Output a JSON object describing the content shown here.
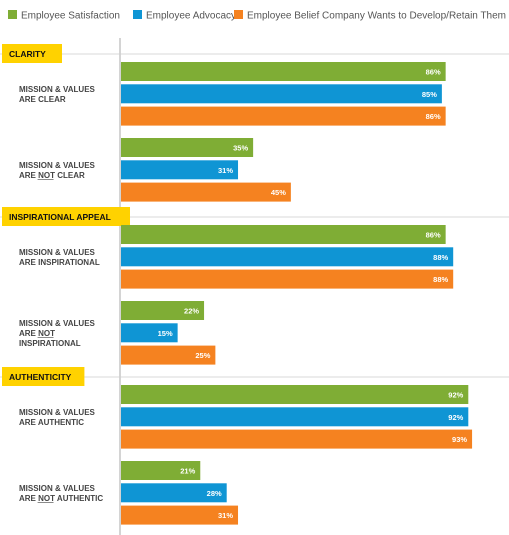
{
  "chart_data": {
    "type": "bar",
    "orientation": "horizontal",
    "legend": [
      {
        "name": "Employee Satisfaction",
        "color": "#7fad35"
      },
      {
        "name": "Employee Advocacy",
        "color": "#0f95d4"
      },
      {
        "name": "Employee Belief Company Wants to Develop/Retain Them",
        "color": "#f58220"
      }
    ],
    "xlim": [
      0,
      100
    ],
    "sections": [
      {
        "title": "CLARITY",
        "groups": [
          {
            "label_lines": [
              "MISSION & VALUES",
              "ARE CLEAR"
            ],
            "values": [
              86,
              85,
              86
            ],
            "value_labels": [
              "86%",
              "85%",
              "86%"
            ]
          },
          {
            "label_lines": [
              "MISSION & VALUES",
              "ARE NOT CLEAR"
            ],
            "values": [
              35,
              31,
              45
            ],
            "value_labels": [
              "35%",
              "31%",
              "45%"
            ]
          }
        ]
      },
      {
        "title": "INSPIRATIONAL APPEAL",
        "groups": [
          {
            "label_lines": [
              "MISSION & VALUES",
              "ARE INSPIRATIONAL"
            ],
            "values": [
              86,
              88,
              88
            ],
            "value_labels": [
              "86%",
              "88%",
              "88%"
            ]
          },
          {
            "label_lines": [
              "MISSION & VALUES",
              "ARE NOT",
              "INSPIRATIONAL"
            ],
            "values": [
              22,
              15,
              25
            ],
            "value_labels": [
              "22%",
              "15%",
              "25%"
            ]
          }
        ]
      },
      {
        "title": "AUTHENTICITY",
        "groups": [
          {
            "label_lines": [
              "MISSION & VALUES",
              "ARE AUTHENTIC"
            ],
            "values": [
              92,
              92,
              93
            ],
            "value_labels": [
              "92%",
              "92%",
              "93%"
            ]
          },
          {
            "label_lines": [
              "MISSION & VALUES",
              "ARE NOT AUTHENTIC"
            ],
            "values": [
              21,
              28,
              31
            ],
            "value_labels": [
              "21%",
              "28%",
              "31%"
            ]
          }
        ]
      }
    ],
    "colors": {
      "section_tag": "#ffd200",
      "axis": "#aaaaaa",
      "divider": "#cccccc"
    }
  }
}
